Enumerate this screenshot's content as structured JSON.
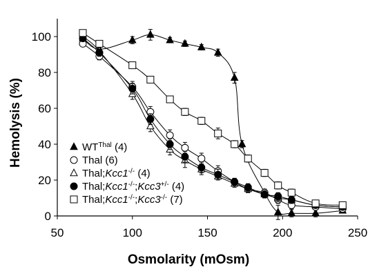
{
  "chart_data": {
    "type": "line",
    "xlabel": "Osmolarity (mOsm)",
    "ylabel": "Hemolysis  (%)",
    "xlim": [
      50,
      250
    ],
    "ylim": [
      0,
      110
    ],
    "xticks": [
      "50",
      "100",
      "150",
      "200",
      "250"
    ],
    "yticks": [
      "0",
      "20",
      "40",
      "60",
      "80",
      "100"
    ],
    "grid": false,
    "legend_position": "bottom-left",
    "series": [
      {
        "marker": "filled-triangle",
        "legend_parts": [
          {
            "t": "WT"
          },
          {
            "t": "Thal",
            "sup": true
          },
          {
            "t": " (4)"
          }
        ],
        "points": [
          [
            67,
            99
          ],
          [
            78,
            93
          ],
          [
            100,
            98
          ],
          [
            112,
            101
          ],
          [
            125,
            98
          ],
          [
            135,
            96
          ],
          [
            146,
            94
          ],
          [
            157,
            91
          ],
          [
            168,
            77
          ],
          [
            173,
            40
          ],
          [
            188,
            13
          ],
          [
            197,
            2
          ],
          [
            206,
            1.5
          ],
          [
            222,
            1.5
          ],
          [
            240,
            3
          ]
        ],
        "errors": [
          1.5,
          2,
          2,
          3,
          1.5,
          1.5,
          1.5,
          2,
          3,
          2,
          2,
          4,
          2,
          2,
          1
        ]
      },
      {
        "marker": "open-circle",
        "legend_parts": [
          {
            "t": "Thal  (6)"
          }
        ],
        "points": [
          [
            67,
            96
          ],
          [
            78,
            89
          ],
          [
            100,
            72
          ],
          [
            112,
            58
          ],
          [
            125,
            45
          ],
          [
            135,
            38
          ],
          [
            146,
            32
          ],
          [
            157,
            25
          ],
          [
            168,
            19
          ],
          [
            177,
            15
          ],
          [
            188,
            13
          ],
          [
            197,
            9
          ],
          [
            206,
            6
          ],
          [
            222,
            5
          ],
          [
            240,
            4
          ]
        ],
        "errors": [
          1.5,
          2,
          3,
          3,
          3,
          3,
          3,
          3,
          2,
          2,
          2,
          2,
          2,
          1,
          1
        ]
      },
      {
        "marker": "open-triangle",
        "legend_parts": [
          {
            "t": "Thal;"
          },
          {
            "t": "Kcc1",
            "i": true
          },
          {
            "t": "-/-",
            "sup": true
          },
          {
            "t": " (4)"
          }
        ],
        "points": [
          [
            67,
            100
          ],
          [
            78,
            92
          ],
          [
            100,
            68
          ],
          [
            112,
            50
          ],
          [
            125,
            37
          ],
          [
            135,
            31
          ],
          [
            146,
            26
          ],
          [
            157,
            22
          ],
          [
            168,
            18
          ],
          [
            177,
            15
          ],
          [
            188,
            12
          ],
          [
            197,
            10
          ],
          [
            206,
            9
          ],
          [
            222,
            6
          ],
          [
            240,
            5
          ]
        ],
        "errors": [
          1.5,
          2,
          3,
          3,
          3,
          4,
          3,
          2,
          2,
          2,
          2,
          2,
          2,
          1,
          1
        ]
      },
      {
        "marker": "filled-circle",
        "legend_parts": [
          {
            "t": "Thal;"
          },
          {
            "t": "Kcc1",
            "i": true
          },
          {
            "t": "-/-",
            "sup": true
          },
          {
            "t": ";"
          },
          {
            "t": "Kcc3",
            "i": true
          },
          {
            "t": "+/-",
            "sup": true
          },
          {
            "t": " (4)"
          }
        ],
        "points": [
          [
            67,
            99
          ],
          [
            78,
            91
          ],
          [
            100,
            71
          ],
          [
            112,
            54
          ],
          [
            125,
            40
          ],
          [
            135,
            33
          ],
          [
            146,
            27
          ],
          [
            157,
            23
          ],
          [
            168,
            19
          ],
          [
            177,
            16
          ],
          [
            188,
            12
          ],
          [
            197,
            11
          ],
          [
            206,
            9
          ],
          [
            222,
            6
          ],
          [
            240,
            5
          ]
        ],
        "errors": [
          1.5,
          2,
          3,
          3,
          3,
          3,
          3,
          3,
          2,
          2,
          2,
          2,
          2,
          1,
          1
        ]
      },
      {
        "marker": "open-square",
        "legend_parts": [
          {
            "t": "Thal;"
          },
          {
            "t": "Kcc1",
            "i": true
          },
          {
            "t": "-/-",
            "sup": true
          },
          {
            "t": ";"
          },
          {
            "t": "Kcc3",
            "i": true
          },
          {
            "t": "-/-",
            "sup": true
          },
          {
            "t": " (7)"
          }
        ],
        "points": [
          [
            67,
            102
          ],
          [
            78,
            96
          ],
          [
            100,
            84
          ],
          [
            112,
            76
          ],
          [
            125,
            65
          ],
          [
            135,
            58
          ],
          [
            146,
            53
          ],
          [
            157,
            46
          ],
          [
            168,
            40
          ],
          [
            177,
            32
          ],
          [
            188,
            24
          ],
          [
            197,
            17
          ],
          [
            206,
            13
          ],
          [
            222,
            7
          ],
          [
            240,
            6
          ]
        ],
        "errors": [
          1.5,
          1.5,
          1.5,
          1.5,
          1.5,
          2,
          2,
          3,
          2,
          2,
          2,
          2,
          2,
          1,
          1
        ]
      }
    ]
  }
}
